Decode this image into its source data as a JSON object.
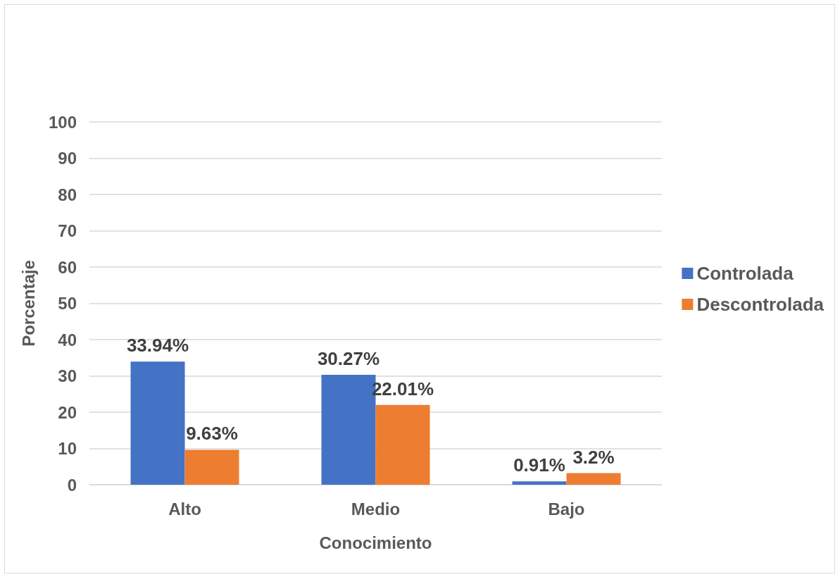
{
  "chart_data": {
    "type": "bar",
    "xlabel": "Conocimiento",
    "ylabel": "Porcentaje",
    "categories": [
      "Alto",
      "Medio",
      "Bajo"
    ],
    "series": [
      {
        "name": "Controlada",
        "color": "#4472c4",
        "values": [
          33.94,
          30.27,
          0.91
        ],
        "value_labels": [
          "33.94%",
          "30.27%",
          "0.91%"
        ]
      },
      {
        "name": "Descontrolada",
        "color": "#ed7d31",
        "values": [
          9.63,
          22.01,
          3.2
        ],
        "value_labels": [
          "9.63%",
          "22.01%",
          "3.2%"
        ]
      }
    ],
    "ylim": [
      0,
      100
    ],
    "yticks": [
      0,
      10,
      20,
      30,
      40,
      50,
      60,
      70,
      80,
      90,
      100
    ],
    "grid": "y",
    "legend": "right"
  }
}
